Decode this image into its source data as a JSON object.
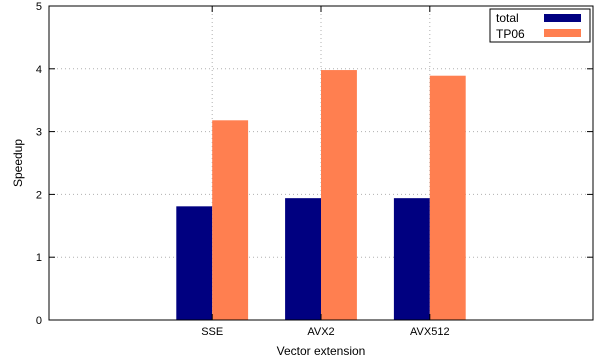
{
  "chart_data": {
    "type": "bar",
    "title": "",
    "xlabel": "Vector extension",
    "ylabel": "Speedup",
    "categories": [
      "SSE",
      "AVX2",
      "AVX512"
    ],
    "series": [
      {
        "name": "total",
        "values": [
          1.81,
          1.94,
          1.94
        ],
        "color": "#000080"
      },
      {
        "name": "TP06",
        "values": [
          3.18,
          3.98,
          3.89
        ],
        "color": "#ff7f50"
      }
    ],
    "ylim": [
      0,
      5
    ],
    "yticks": [
      "0",
      "1",
      "2",
      "3",
      "4",
      "5"
    ],
    "grid": true,
    "legend_position": "top-right"
  }
}
